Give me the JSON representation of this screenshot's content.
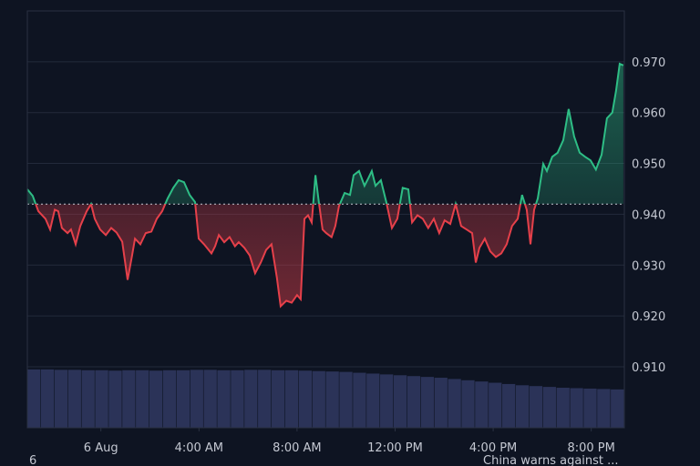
{
  "chart_data": {
    "type": "line",
    "x": [
      -3.0,
      -2.78,
      -2.55,
      -2.26,
      -2.07,
      -1.88,
      -1.74,
      -1.59,
      -1.36,
      -1.22,
      -1.03,
      -0.84,
      -0.58,
      -0.4,
      -0.25,
      -0.03,
      0.2,
      0.42,
      0.64,
      0.87,
      1.09,
      1.27,
      1.39,
      1.61,
      1.83,
      2.06,
      2.28,
      2.5,
      2.72,
      2.95,
      3.17,
      3.39,
      3.62,
      3.84,
      3.99,
      4.21,
      4.51,
      4.66,
      4.81,
      5.03,
      5.25,
      5.47,
      5.62,
      5.85,
      6.07,
      6.29,
      6.52,
      6.74,
      6.96,
      7.18,
      7.33,
      7.56,
      7.78,
      8.0,
      8.15,
      8.3,
      8.45,
      8.6,
      8.75,
      8.89,
      9.04,
      9.19,
      9.41,
      9.56,
      9.71,
      9.94,
      10.16,
      10.31,
      10.53,
      10.75,
      10.9,
      11.05,
      11.2,
      11.42,
      11.64,
      11.87,
      12.09,
      12.31,
      12.54,
      12.69,
      12.91,
      13.13,
      13.35,
      13.58,
      13.8,
      14.02,
      14.25,
      14.47,
      14.69,
      14.92,
      15.14,
      15.29,
      15.44,
      15.66,
      15.88,
      16.11,
      16.33,
      16.55,
      16.77,
      17.0,
      17.18,
      17.37,
      17.52,
      17.67,
      17.82,
      18.04,
      18.19,
      18.41,
      18.63,
      18.86,
      19.08,
      19.3,
      19.53,
      19.75,
      19.97,
      20.19,
      20.42,
      20.64,
      20.86,
      21.01,
      21.16,
      21.31
    ],
    "values": [
      0.9449,
      0.9436,
      0.9406,
      0.9391,
      0.937,
      0.9409,
      0.9406,
      0.9373,
      0.9363,
      0.937,
      0.9341,
      0.9377,
      0.9406,
      0.942,
      0.9391,
      0.937,
      0.9359,
      0.9373,
      0.9364,
      0.9346,
      0.9271,
      0.9319,
      0.9352,
      0.9341,
      0.9363,
      0.9366,
      0.9391,
      0.9406,
      0.9431,
      0.9452,
      0.9467,
      0.9463,
      0.9438,
      0.9424,
      0.9352,
      0.9341,
      0.9323,
      0.9337,
      0.9359,
      0.9345,
      0.9355,
      0.9337,
      0.9345,
      0.9334,
      0.9319,
      0.9284,
      0.9305,
      0.933,
      0.9341,
      0.9275,
      0.9219,
      0.923,
      0.9226,
      0.9241,
      0.9233,
      0.9391,
      0.9398,
      0.9384,
      0.9477,
      0.9424,
      0.937,
      0.9363,
      0.9355,
      0.9377,
      0.9416,
      0.9442,
      0.9438,
      0.9477,
      0.9485,
      0.9456,
      0.947,
      0.9485,
      0.9456,
      0.9467,
      0.9424,
      0.9373,
      0.9391,
      0.9452,
      0.9449,
      0.9384,
      0.9398,
      0.9391,
      0.9373,
      0.9391,
      0.9363,
      0.9388,
      0.9381,
      0.942,
      0.9377,
      0.937,
      0.9363,
      0.9305,
      0.9334,
      0.9352,
      0.9327,
      0.9316,
      0.9323,
      0.9341,
      0.9377,
      0.9391,
      0.9438,
      0.9409,
      0.9341,
      0.9409,
      0.9431,
      0.9499,
      0.9485,
      0.9513,
      0.9521,
      0.9546,
      0.9607,
      0.9553,
      0.9521,
      0.9513,
      0.9506,
      0.9488,
      0.9517,
      0.9589,
      0.96,
      0.9643,
      0.9696,
      0.9693
    ],
    "baseline": 0.942,
    "up_color": "#2ebd85",
    "down_color": "#e5404a",
    "volume": {
      "color": "#2b3358",
      "values": [
        14.0,
        14.0,
        13.9,
        13.9,
        13.8,
        13.8,
        13.7,
        13.8,
        13.8,
        13.7,
        13.8,
        13.8,
        13.9,
        13.9,
        13.8,
        13.8,
        13.9,
        13.9,
        13.8,
        13.8,
        13.7,
        13.6,
        13.5,
        13.4,
        13.2,
        13.0,
        12.8,
        12.6,
        12.4,
        12.2,
        12.0,
        11.7,
        11.4,
        11.1,
        10.8,
        10.5,
        10.2,
        10.0,
        9.8,
        9.6,
        9.5,
        9.4,
        9.3,
        9.2
      ]
    },
    "vlim": [
      0,
      100
    ],
    "xlim": [
      -3,
      21.35
    ],
    "xticks": [
      {
        "value": 0,
        "label": "6 Aug"
      },
      {
        "value": 4,
        "label": "4:00 AM"
      },
      {
        "value": 8,
        "label": "8:00 AM"
      },
      {
        "value": 12,
        "label": "12:00 PM"
      },
      {
        "value": 16,
        "label": "4:00 PM"
      },
      {
        "value": 20,
        "label": "8:00 PM"
      }
    ],
    "ylim": [
      0.898,
      0.98
    ],
    "yticks": [
      {
        "value": 0.91,
        "label": "0.910"
      },
      {
        "value": 0.92,
        "label": "0.920"
      },
      {
        "value": 0.93,
        "label": "0.930"
      },
      {
        "value": 0.94,
        "label": "0.940"
      },
      {
        "value": 0.95,
        "label": "0.950"
      },
      {
        "value": 0.96,
        "label": "0.960"
      },
      {
        "value": 0.97,
        "label": "0.970"
      }
    ],
    "grid": true,
    "annotations": [
      "6",
      "China warns against ..."
    ]
  }
}
